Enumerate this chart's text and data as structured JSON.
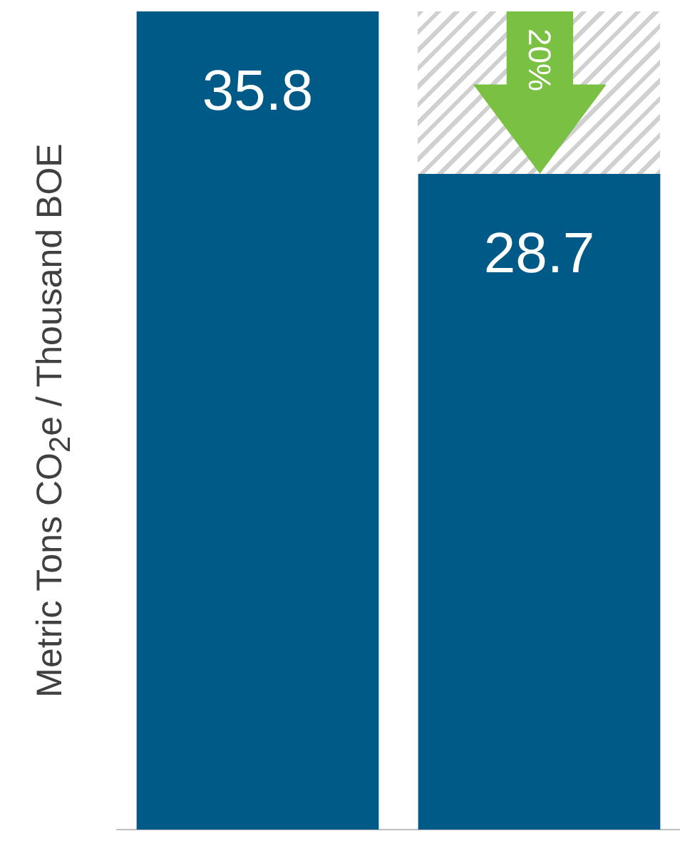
{
  "chart_data": {
    "type": "bar",
    "ylabel": "Metric Tons CO$_{2}$e / Thousand BOE",
    "categories": [
      null,
      null
    ],
    "values": [
      35.8,
      28.7
    ],
    "color": "#005a87",
    "data_labels": true,
    "annotations": [
      "20%"
    ]
  }
}
